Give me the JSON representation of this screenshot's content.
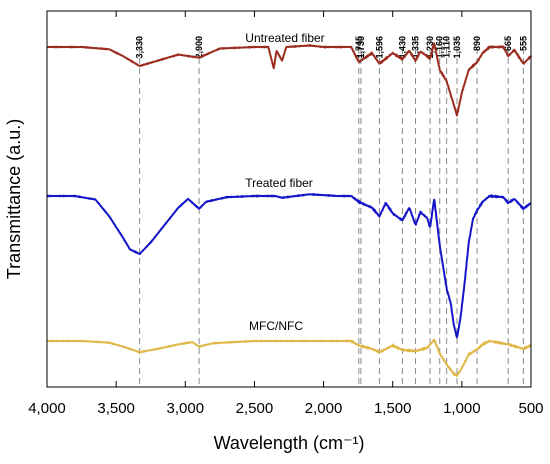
{
  "chart_data": {
    "type": "line",
    "xlabel": "Wavelength (cm⁻¹)",
    "ylabel": "Transmittance (a.u.)",
    "xlim": [
      4000,
      500
    ],
    "x_reversed": true,
    "x_ticks": [
      4000,
      3500,
      3000,
      2500,
      2000,
      1500,
      1000,
      500
    ],
    "x_tick_labels": [
      "4,000",
      "3,500",
      "3,000",
      "2,500",
      "2,000",
      "1,500",
      "1,000",
      "500"
    ],
    "y_ticks_shown": false,
    "grid": false,
    "legend": "none (series labelled inline)",
    "peak_markers": [
      {
        "x": 3330,
        "label": "3,330"
      },
      {
        "x": 2900,
        "label": "2,900"
      },
      {
        "x": 1745,
        "label": "1,745"
      },
      {
        "x": 1730,
        "label": "1,730"
      },
      {
        "x": 1596,
        "label": "1,596"
      },
      {
        "x": 1430,
        "label": "1,430"
      },
      {
        "x": 1335,
        "label": "1,335"
      },
      {
        "x": 1230,
        "label": "1,230"
      },
      {
        "x": 1160,
        "label": "1,160"
      },
      {
        "x": 1110,
        "label": "1,110"
      },
      {
        "x": 1035,
        "label": "1,035"
      },
      {
        "x": 890,
        "label": "890"
      },
      {
        "x": 665,
        "label": "665"
      },
      {
        "x": 555,
        "label": "555"
      }
    ],
    "series": [
      {
        "name": "Untreated fiber",
        "color": "#9b2d20",
        "points": [
          [
            4000,
            0.0
          ],
          [
            3750,
            0.0
          ],
          [
            3550,
            -0.03
          ],
          [
            3450,
            -0.12
          ],
          [
            3330,
            -0.25
          ],
          [
            3200,
            -0.18
          ],
          [
            3050,
            -0.1
          ],
          [
            2900,
            -0.14
          ],
          [
            2750,
            -0.02
          ],
          [
            2500,
            0.0
          ],
          [
            2400,
            0.0
          ],
          [
            2360,
            -0.28
          ],
          [
            2340,
            -0.05
          ],
          [
            2300,
            -0.18
          ],
          [
            2270,
            0.0
          ],
          [
            2100,
            0.02
          ],
          [
            2000,
            0.0
          ],
          [
            1800,
            0.0
          ],
          [
            1745,
            -0.2
          ],
          [
            1730,
            -0.18
          ],
          [
            1650,
            -0.08
          ],
          [
            1596,
            -0.22
          ],
          [
            1500,
            -0.08
          ],
          [
            1430,
            -0.16
          ],
          [
            1380,
            -0.05
          ],
          [
            1335,
            -0.18
          ],
          [
            1300,
            -0.06
          ],
          [
            1250,
            -0.12
          ],
          [
            1230,
            -0.16
          ],
          [
            1200,
            0.05
          ],
          [
            1160,
            -0.3
          ],
          [
            1110,
            -0.45
          ],
          [
            1060,
            -0.75
          ],
          [
            1035,
            -0.9
          ],
          [
            1000,
            -0.6
          ],
          [
            950,
            -0.3
          ],
          [
            890,
            -0.2
          ],
          [
            850,
            -0.08
          ],
          [
            800,
            0.0
          ],
          [
            700,
            0.0
          ],
          [
            665,
            -0.12
          ],
          [
            620,
            -0.04
          ],
          [
            555,
            -0.22
          ],
          [
            500,
            -0.12
          ]
        ]
      },
      {
        "name": "Treated fiber",
        "color": "#1414c8",
        "points": [
          [
            4000,
            0.0
          ],
          [
            3800,
            0.0
          ],
          [
            3650,
            -0.06
          ],
          [
            3550,
            -0.35
          ],
          [
            3450,
            -0.72
          ],
          [
            3400,
            -0.92
          ],
          [
            3330,
            -1.0
          ],
          [
            3250,
            -0.8
          ],
          [
            3150,
            -0.5
          ],
          [
            3050,
            -0.2
          ],
          [
            2980,
            -0.05
          ],
          [
            2900,
            -0.22
          ],
          [
            2850,
            -0.1
          ],
          [
            2700,
            -0.02
          ],
          [
            2500,
            0.0
          ],
          [
            2350,
            0.0
          ],
          [
            2300,
            -0.03
          ],
          [
            2100,
            0.03
          ],
          [
            1900,
            0.0
          ],
          [
            1800,
            0.0
          ],
          [
            1745,
            -0.1
          ],
          [
            1700,
            -0.15
          ],
          [
            1650,
            -0.2
          ],
          [
            1596,
            -0.35
          ],
          [
            1550,
            -0.12
          ],
          [
            1500,
            -0.3
          ],
          [
            1430,
            -0.42
          ],
          [
            1380,
            -0.2
          ],
          [
            1335,
            -0.5
          ],
          [
            1300,
            -0.28
          ],
          [
            1250,
            -0.38
          ],
          [
            1230,
            -0.55
          ],
          [
            1200,
            -0.05
          ],
          [
            1160,
            -0.85
          ],
          [
            1110,
            -1.6
          ],
          [
            1080,
            -1.85
          ],
          [
            1060,
            -2.2
          ],
          [
            1035,
            -2.45
          ],
          [
            1010,
            -2.1
          ],
          [
            980,
            -1.5
          ],
          [
            950,
            -0.8
          ],
          [
            920,
            -0.4
          ],
          [
            890,
            -0.25
          ],
          [
            850,
            -0.1
          ],
          [
            800,
            0.0
          ],
          [
            700,
            -0.02
          ],
          [
            665,
            -0.12
          ],
          [
            620,
            -0.05
          ],
          [
            555,
            -0.22
          ],
          [
            500,
            -0.12
          ]
        ]
      },
      {
        "name": "MFC/NFC",
        "color": "#e0b84a",
        "points": [
          [
            4000,
            0.0
          ],
          [
            3750,
            0.0
          ],
          [
            3550,
            -0.03
          ],
          [
            3450,
            -0.1
          ],
          [
            3330,
            -0.2
          ],
          [
            3200,
            -0.14
          ],
          [
            3050,
            -0.06
          ],
          [
            2950,
            -0.02
          ],
          [
            2900,
            -0.1
          ],
          [
            2800,
            -0.04
          ],
          [
            2500,
            0.0
          ],
          [
            2200,
            0.0
          ],
          [
            1900,
            0.0
          ],
          [
            1800,
            0.0
          ],
          [
            1745,
            -0.08
          ],
          [
            1650,
            -0.14
          ],
          [
            1596,
            -0.2
          ],
          [
            1500,
            -0.08
          ],
          [
            1430,
            -0.16
          ],
          [
            1335,
            -0.18
          ],
          [
            1250,
            -0.12
          ],
          [
            1200,
            0.02
          ],
          [
            1160,
            -0.22
          ],
          [
            1110,
            -0.42
          ],
          [
            1060,
            -0.58
          ],
          [
            1035,
            -0.62
          ],
          [
            1000,
            -0.48
          ],
          [
            950,
            -0.24
          ],
          [
            890,
            -0.15
          ],
          [
            850,
            -0.06
          ],
          [
            800,
            0.0
          ],
          [
            665,
            -0.06
          ],
          [
            555,
            -0.14
          ],
          [
            500,
            -0.08
          ]
        ]
      }
    ]
  }
}
